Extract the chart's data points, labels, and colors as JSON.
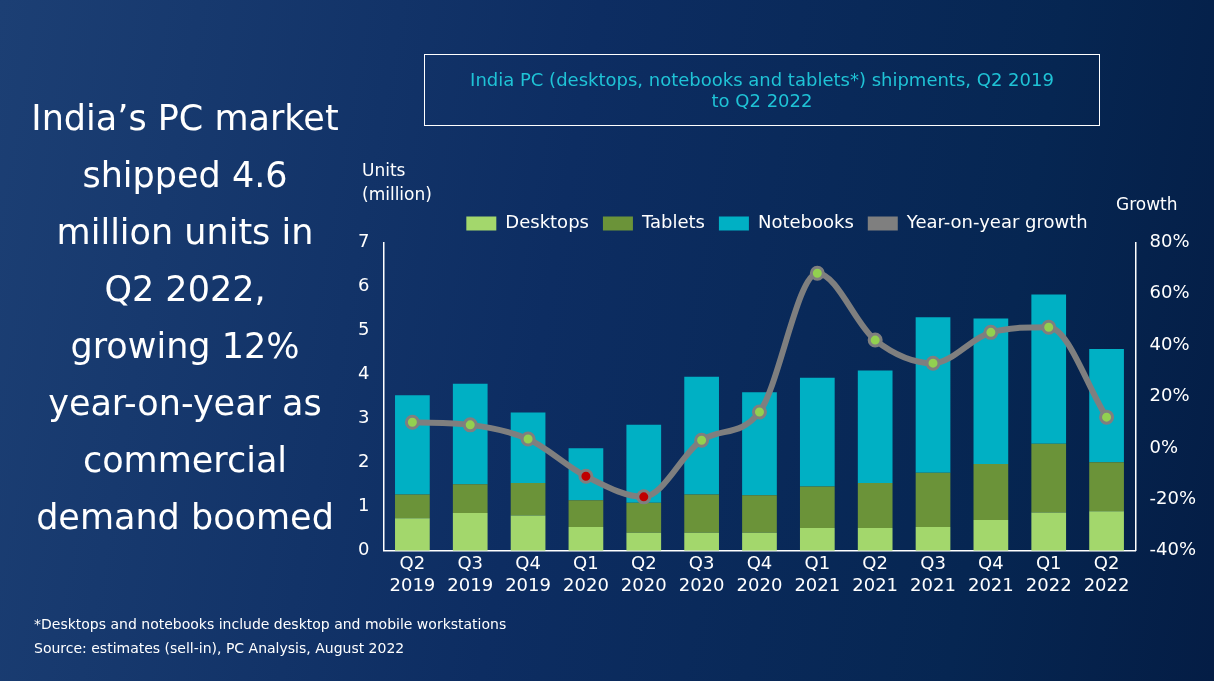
{
  "chart_data": {
    "type": "bar",
    "title": "India PC (desktops, notebooks and tablets*) shipments, Q2 2019 to Q2 2022",
    "categories": [
      "Q2 2019",
      "Q3 2019",
      "Q4 2019",
      "Q1 2020",
      "Q2 2020",
      "Q3 2020",
      "Q4 2020",
      "Q1 2021",
      "Q2 2021",
      "Q3 2021",
      "Q4 2021",
      "Q1 2022",
      "Q2 2022"
    ],
    "stacked": true,
    "series": [
      {
        "name": "Desktops",
        "color": "#a3d76c",
        "values": [
          0.74,
          0.86,
          0.8,
          0.54,
          0.41,
          0.41,
          0.41,
          0.52,
          0.52,
          0.54,
          0.7,
          0.87,
          0.9
        ]
      },
      {
        "name": "Tablets",
        "color": "#6b9339",
        "values": [
          0.54,
          0.65,
          0.74,
          0.61,
          0.68,
          0.87,
          0.85,
          0.94,
          1.02,
          1.23,
          1.27,
          1.56,
          1.11
        ]
      },
      {
        "name": "Notebooks",
        "color": "#00b0c4",
        "values": [
          2.25,
          2.28,
          1.6,
          1.18,
          1.77,
          2.67,
          2.34,
          2.47,
          2.55,
          3.53,
          3.3,
          3.39,
          2.57
        ]
      },
      {
        "name": "Year-on-year growth",
        "type": "line",
        "axis": "y2",
        "color": "#7f7f7f",
        "marker": "circle",
        "colors": [
          "#92d050",
          "#92d050",
          "#92d050",
          "#c00000",
          "#c00000",
          "#92d050",
          "#92d050",
          "#92d050",
          "#92d050",
          "#92d050",
          "#92d050",
          "#92d050",
          "#92d050"
        ],
        "values": [
          10,
          9,
          3.5,
          -11,
          -19,
          3,
          14,
          68,
          42,
          33,
          45,
          47,
          12
        ]
      }
    ],
    "ylabel": "Units (million)",
    "y2label": "Growth",
    "ylim": [
      0,
      7
    ],
    "yticks": [
      0,
      1,
      2,
      3,
      4,
      5,
      6,
      7
    ],
    "y2lim": [
      -40,
      80
    ],
    "y2ticks": [
      {
        "value": -40,
        "label": "-40%"
      },
      {
        "value": -20,
        "label": "-20%"
      },
      {
        "value": 0,
        "label": "0%"
      },
      {
        "value": 20,
        "label": "20%"
      },
      {
        "value": 40,
        "label": "40%"
      },
      {
        "value": 60,
        "label": "60%"
      },
      {
        "value": 80,
        "label": "80%"
      }
    ],
    "grid": false,
    "legend": "top",
    "annotations": [
      "India’s PC market shipped 4.6 million units in Q2 2022, growing 12% year-on-year as commercial demand boomed",
      "*Desktops and notebooks include desktop and mobile workstations",
      "Source: estimates (sell-in), PC Analysis, August 2022"
    ]
  }
}
